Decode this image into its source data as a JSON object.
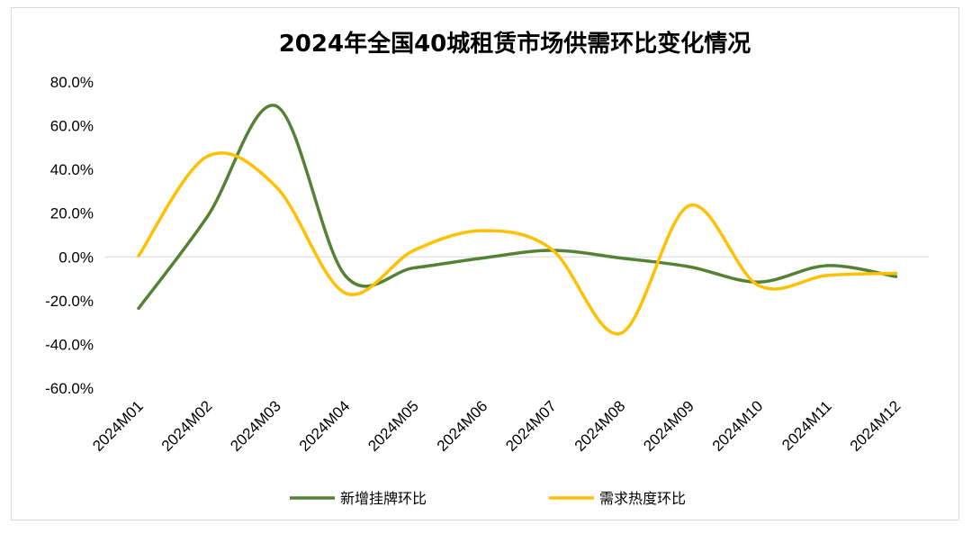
{
  "chart_data": {
    "type": "line",
    "title": "2024年全国40城租赁市场供需环比变化情况",
    "categories": [
      "2024M01",
      "2024M02",
      "2024M03",
      "2024M04",
      "2024M05",
      "2024M06",
      "2024M07",
      "2024M08",
      "2024M09",
      "2024M10",
      "2024M11",
      "2024M12"
    ],
    "ylim": [
      -60,
      80
    ],
    "yticks": [
      80,
      60,
      40,
      20,
      0,
      -20,
      -40,
      -60
    ],
    "ytick_labels": [
      "80.0%",
      "60.0%",
      "40.0%",
      "20.0%",
      "0.0%",
      "-20.0%",
      "-40.0%",
      "-60.0%"
    ],
    "grid": false,
    "zero_line": true,
    "legend_position": "bottom",
    "smooth": true,
    "series": [
      {
        "name": "新增挂牌环比",
        "color": "#548235",
        "values": [
          -23.5,
          18.5,
          69.0,
          -8.5,
          -5.0,
          -0.5,
          3.0,
          -0.5,
          -4.5,
          -11.5,
          -4.0,
          -9.0
        ]
      },
      {
        "name": "需求热度环比",
        "color": "#FFC000",
        "values": [
          0.5,
          46.0,
          32.0,
          -16.5,
          3.0,
          12.0,
          3.5,
          -35.0,
          23.5,
          -13.0,
          -8.5,
          -7.5
        ]
      }
    ]
  }
}
